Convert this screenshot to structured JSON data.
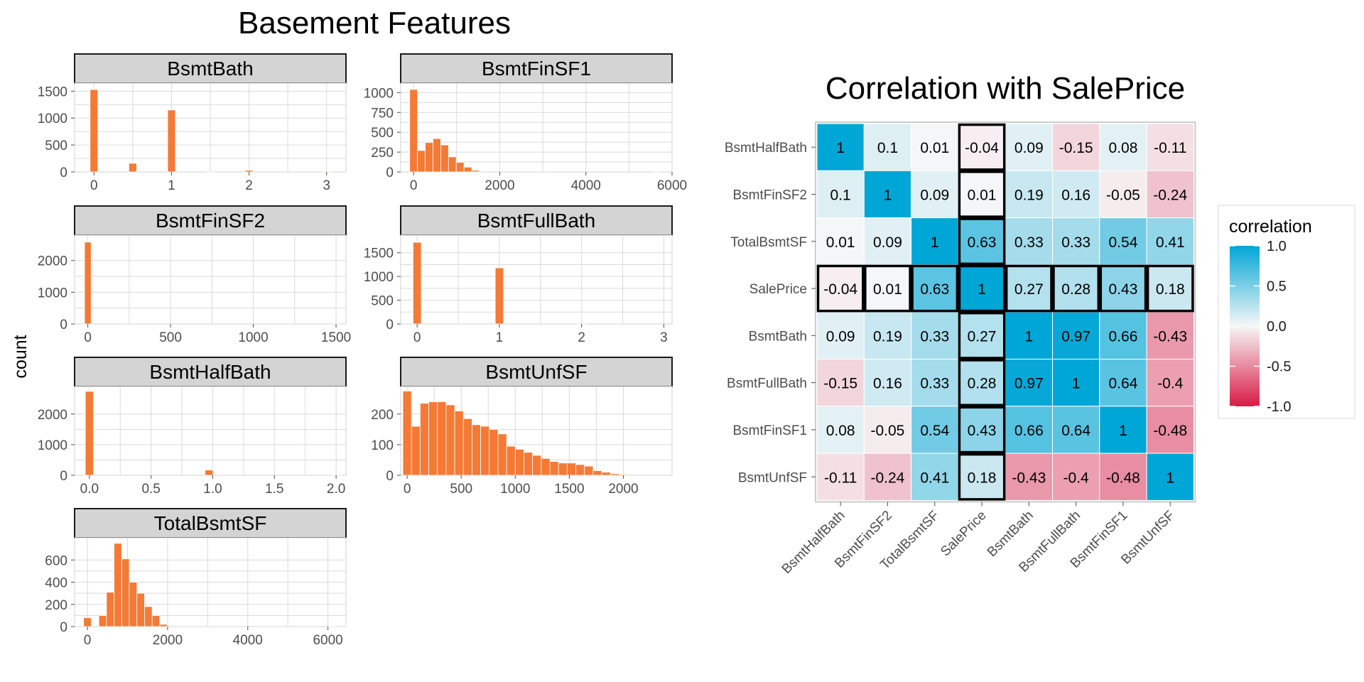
{
  "left_title": "Basement Features",
  "right_title": "Correlation with SalePrice",
  "y_axis_title": "count",
  "colors": {
    "bar": "#F47A35",
    "strip": "#D4D4D4",
    "grid": "#DADADA",
    "high": "#00A6D6",
    "mid": "#F7F7F7",
    "low": "#D81B46"
  },
  "chart_data": [
    {
      "type": "bar",
      "panel": "BsmtBath",
      "strip": "BsmtBath",
      "xlim": [
        -0.25,
        3.25
      ],
      "ylim": [
        0,
        1650
      ],
      "xticks": [
        0,
        1,
        2,
        3
      ],
      "xtick_labels": [
        "0",
        "1",
        "2",
        "3"
      ],
      "yticks": [
        0,
        500,
        1000,
        1500
      ],
      "ytick_labels": [
        "0",
        "500",
        "1000",
        "1500"
      ],
      "bin_width": 0.1,
      "x": [
        0,
        0.5,
        1,
        1.5,
        2,
        3
      ],
      "values": [
        1530,
        160,
        1150,
        10,
        30,
        3
      ]
    },
    {
      "type": "bar",
      "panel": "BsmtFinSF1",
      "strip": "BsmtFinSF1",
      "xlim": [
        -300,
        6000
      ],
      "ylim": [
        0,
        1120
      ],
      "xticks": [
        0,
        2000,
        4000,
        6000
      ],
      "xtick_labels": [
        "0",
        "2000",
        "4000",
        "6000"
      ],
      "yticks": [
        0,
        250,
        500,
        750,
        1000
      ],
      "ytick_labels": [
        "0",
        "250",
        "500",
        "750",
        "1000"
      ],
      "bin_width": 180,
      "x": [
        0,
        180,
        360,
        540,
        720,
        900,
        1080,
        1260,
        1440,
        5640
      ],
      "values": [
        1040,
        270,
        370,
        420,
        340,
        190,
        120,
        60,
        20,
        3
      ]
    },
    {
      "type": "bar",
      "panel": "BsmtFinSF2",
      "strip": "BsmtFinSF2",
      "xlim": [
        -80,
        1560
      ],
      "ylim": [
        0,
        2800
      ],
      "xticks": [
        0,
        500,
        1000,
        1500
      ],
      "xtick_labels": [
        "0",
        "500",
        "1000",
        "1500"
      ],
      "yticks": [
        0,
        1000,
        2000
      ],
      "ytick_labels": [
        "0",
        "1000",
        "2000"
      ],
      "bin_width": 40,
      "x": [
        0,
        1500
      ],
      "values": [
        2580,
        2
      ]
    },
    {
      "type": "bar",
      "panel": "BsmtFullBath",
      "strip": "BsmtFullBath",
      "xlim": [
        -0.2,
        3.1
      ],
      "ylim": [
        0,
        1870
      ],
      "xticks": [
        0,
        1,
        2,
        3
      ],
      "xtick_labels": [
        "0",
        "1",
        "2",
        "3"
      ],
      "yticks": [
        0,
        500,
        1000,
        1500
      ],
      "ytick_labels": [
        "0",
        "500",
        "1000",
        "1500"
      ],
      "bin_width": 0.1,
      "x": [
        0,
        1,
        2
      ],
      "values": [
        1720,
        1180,
        10
      ]
    },
    {
      "type": "bar",
      "panel": "BsmtHalfBath",
      "strip": "BsmtHalfBath",
      "xlim": [
        -0.12,
        2.08
      ],
      "ylim": [
        0,
        2900
      ],
      "xticks": [
        0,
        0.5,
        1,
        1.5,
        2
      ],
      "xtick_labels": [
        "0.0",
        "0.5",
        "1.0",
        "1.5",
        "2.0"
      ],
      "yticks": [
        0,
        1000,
        2000
      ],
      "ytick_labels": [
        "0",
        "1000",
        "2000"
      ],
      "bin_width": 0.066,
      "x": [
        0,
        0.97,
        2
      ],
      "values": [
        2740,
        170,
        4
      ]
    },
    {
      "type": "bar",
      "panel": "BsmtUnfSF",
      "strip": "BsmtUnfSF",
      "xlim": [
        -60,
        2450
      ],
      "ylim": [
        0,
        290
      ],
      "xticks": [
        0,
        500,
        1000,
        1500,
        2000
      ],
      "xtick_labels": [
        "0",
        "500",
        "1000",
        "1500",
        "2000"
      ],
      "yticks": [
        0,
        100,
        200
      ],
      "ytick_labels": [
        "0",
        "100",
        "200"
      ],
      "bin_width": 80,
      "x": [
        0,
        80,
        160,
        240,
        320,
        400,
        480,
        560,
        640,
        720,
        800,
        880,
        960,
        1040,
        1120,
        1200,
        1280,
        1360,
        1440,
        1520,
        1600,
        1680,
        1760,
        1840,
        1920,
        2000
      ],
      "values": [
        275,
        160,
        235,
        240,
        240,
        230,
        210,
        185,
        165,
        160,
        150,
        135,
        95,
        85,
        75,
        65,
        55,
        45,
        40,
        40,
        35,
        30,
        15,
        10,
        5,
        3
      ]
    },
    {
      "type": "bar",
      "panel": "TotalBsmtSF",
      "strip": "TotalBsmtSF",
      "xlim": [
        -320,
        6450
      ],
      "ylim": [
        0,
        800
      ],
      "xticks": [
        0,
        2000,
        4000,
        6000
      ],
      "xtick_labels": [
        "0",
        "2000",
        "4000",
        "6000"
      ],
      "yticks": [
        0,
        200,
        400,
        600
      ],
      "ytick_labels": [
        "0",
        "200",
        "400",
        "600"
      ],
      "bin_width": 190,
      "x": [
        0,
        380,
        570,
        760,
        950,
        1140,
        1330,
        1520,
        1710,
        1900,
        6100
      ],
      "values": [
        80,
        100,
        310,
        750,
        610,
        400,
        300,
        180,
        100,
        20,
        2
      ]
    },
    {
      "type": "heatmap",
      "title": "Correlation with SalePrice",
      "x": [
        "BsmtHalfBath",
        "BsmtFinSF2",
        "TotalBsmtSF",
        "SalePrice",
        "BsmtBath",
        "BsmtFullBath",
        "BsmtFinSF1",
        "BsmtUnfSF"
      ],
      "y": [
        "BsmtHalfBath",
        "BsmtFinSF2",
        "TotalBsmtSF",
        "SalePrice",
        "BsmtBath",
        "BsmtFullBath",
        "BsmtFinSF1",
        "BsmtUnfSF"
      ],
      "values": [
        [
          1,
          0.1,
          0.01,
          -0.04,
          0.09,
          -0.15,
          0.08,
          -0.11
        ],
        [
          0.1,
          1,
          0.09,
          0.01,
          0.19,
          0.16,
          -0.05,
          -0.24
        ],
        [
          0.01,
          0.09,
          1,
          0.63,
          0.33,
          0.33,
          0.54,
          0.41
        ],
        [
          -0.04,
          0.01,
          0.63,
          1,
          0.27,
          0.28,
          0.43,
          0.18
        ],
        [
          0.09,
          0.19,
          0.33,
          0.27,
          1,
          0.97,
          0.66,
          -0.43
        ],
        [
          -0.15,
          0.16,
          0.33,
          0.28,
          0.97,
          1,
          0.64,
          -0.4
        ],
        [
          0.08,
          -0.05,
          0.54,
          0.43,
          0.66,
          0.64,
          1,
          -0.48
        ],
        [
          -0.11,
          -0.24,
          0.41,
          0.18,
          -0.43,
          -0.4,
          -0.48,
          1
        ]
      ],
      "highlight": "SalePrice",
      "legend_title": "correlation",
      "legend_ticks": [
        1.0,
        0.5,
        0.0,
        -0.5,
        -1.0
      ],
      "legend_tick_labels": [
        "1.0",
        "0.5",
        "0.0",
        "-0.5",
        "-1.0"
      ],
      "legend_placement": "right",
      "color_scale": [
        "#D81B46",
        "#F7F7F7",
        "#00A6D6"
      ],
      "limits": [
        -1,
        1
      ]
    }
  ]
}
